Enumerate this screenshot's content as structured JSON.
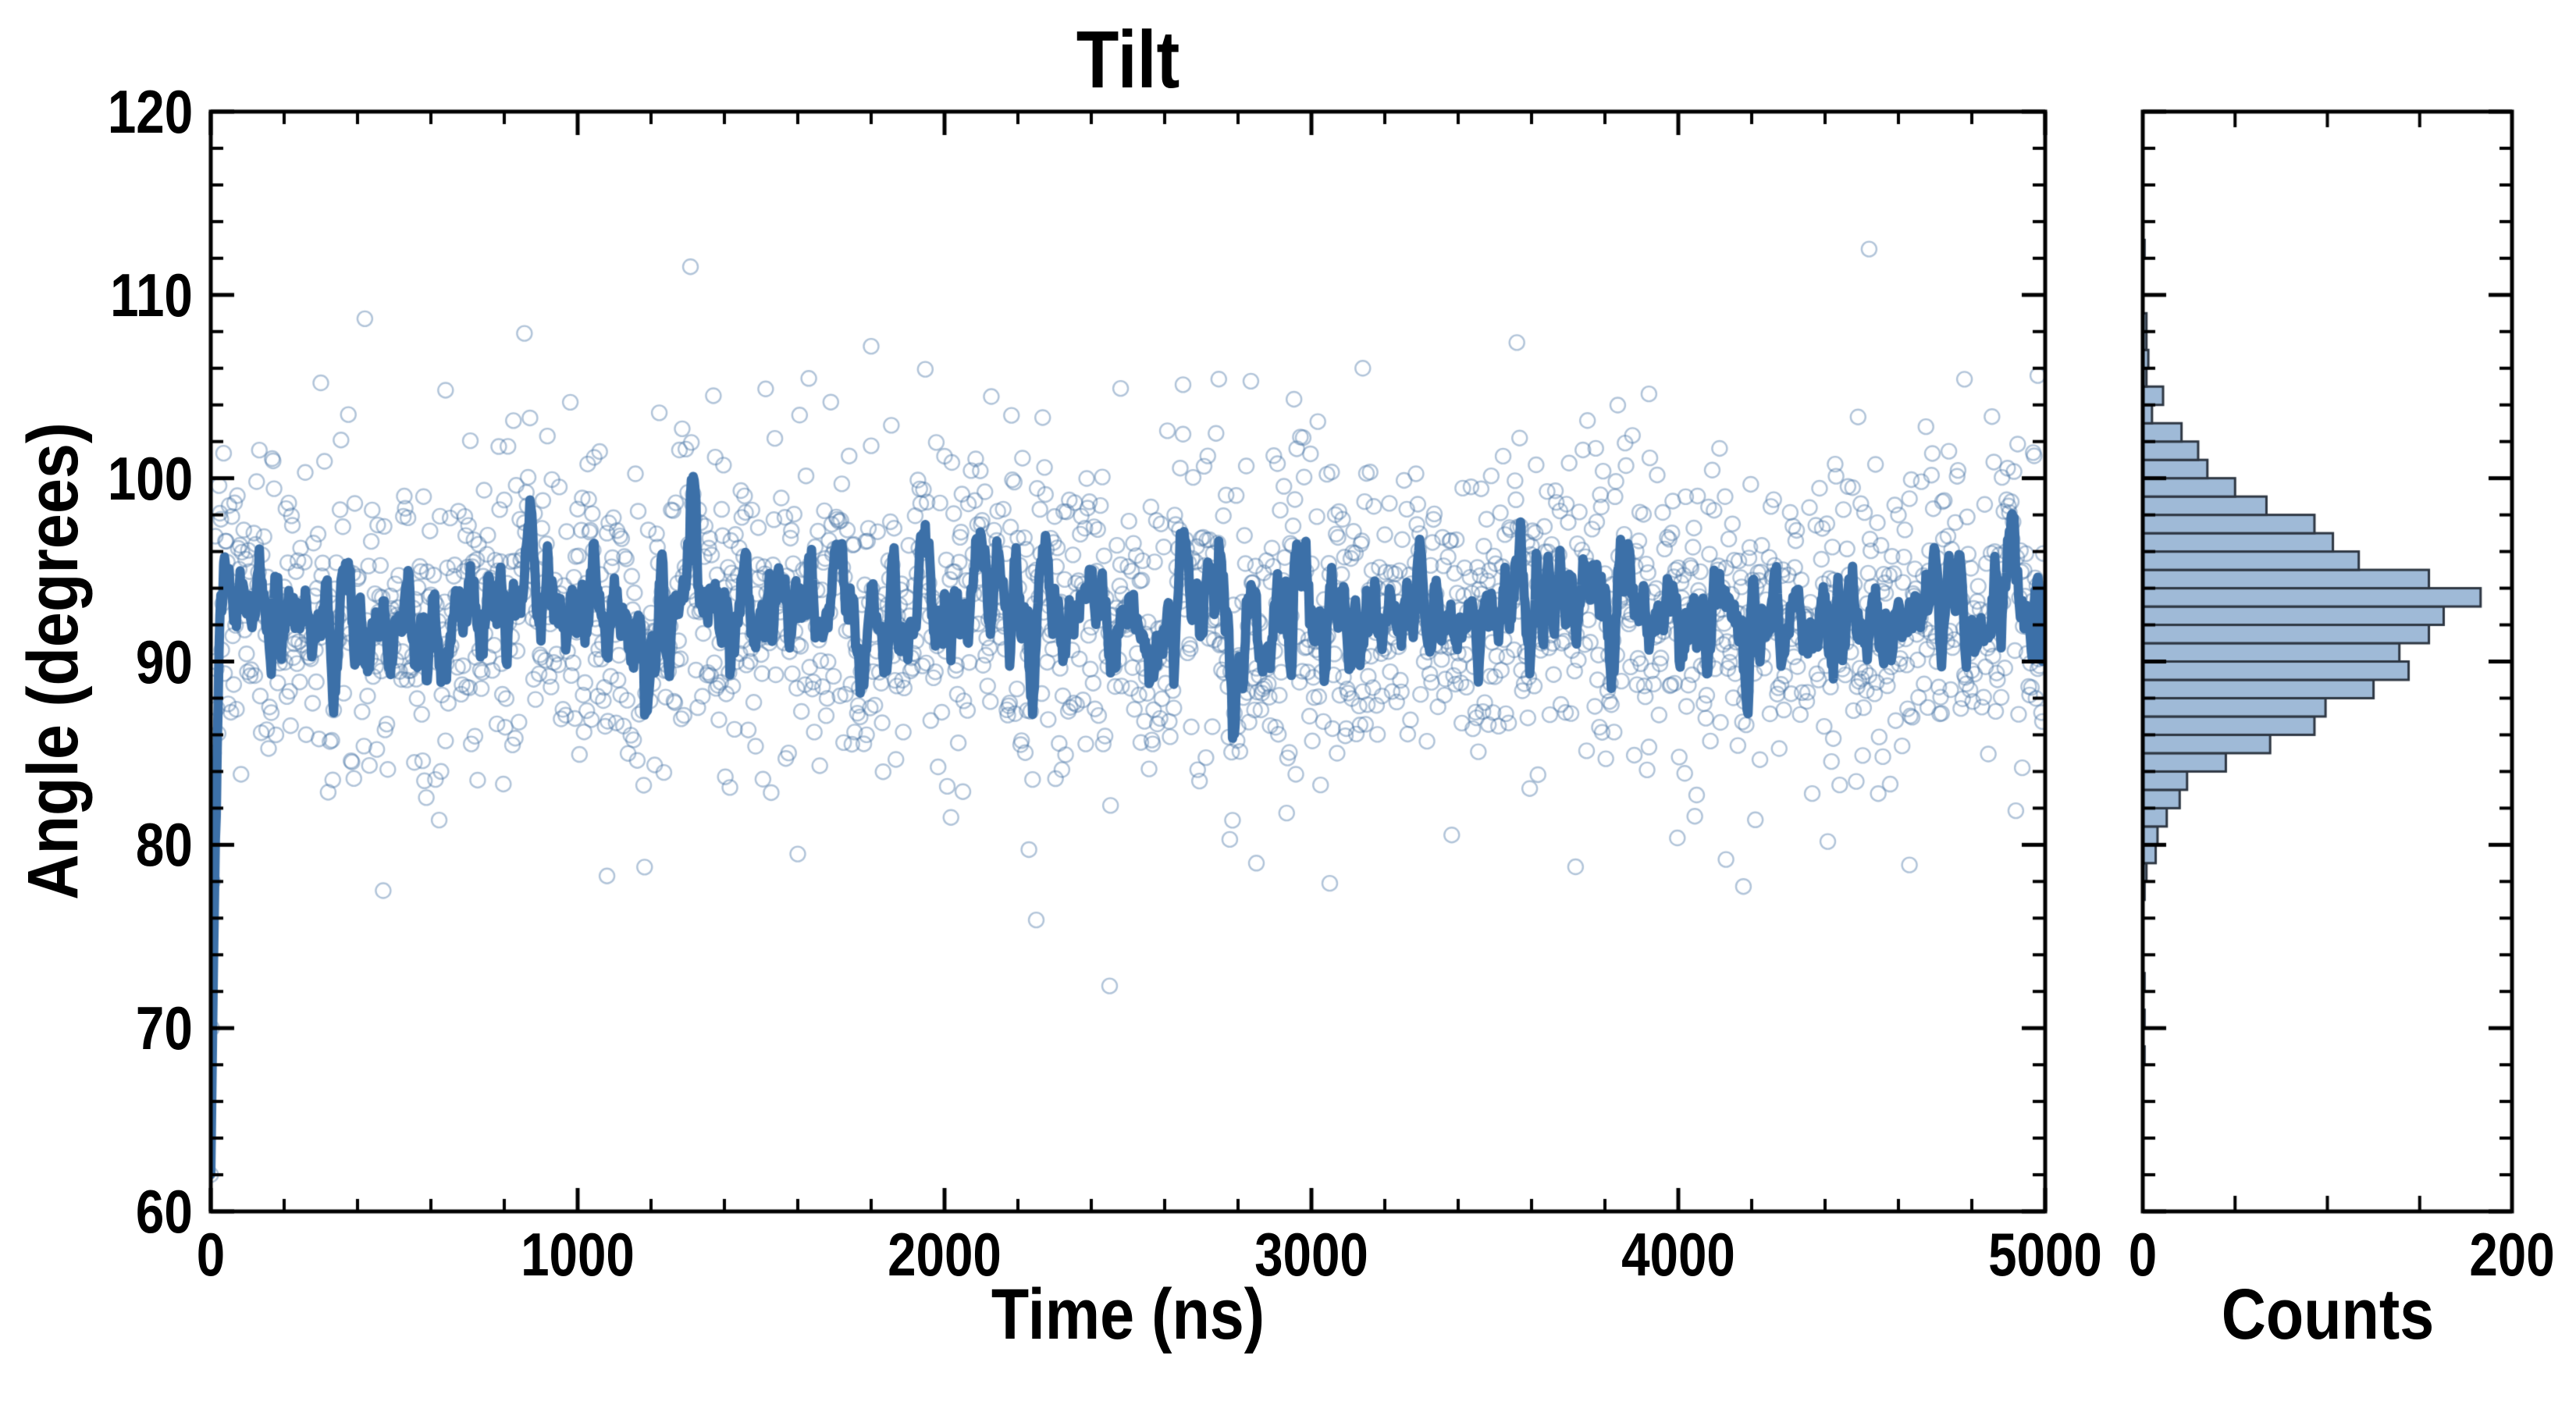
{
  "style": {
    "background": "#ffffff",
    "axis_color": "#000000",
    "line_color": "#3c70a8",
    "marker_color": "rgba(70,114,164,0.42)",
    "hist_fill": "#9fbad7",
    "hist_edge": "#2e3743"
  },
  "chart_data": {
    "type": "scatter",
    "title": "Tilt",
    "xlabel": "Time (ns)",
    "ylabel": "Angle (degrees)",
    "legend": "none",
    "grid": false,
    "main_axes": {
      "xlim": [
        0,
        5000
      ],
      "ylim": [
        60,
        120
      ],
      "xticks": [
        0,
        1000,
        2000,
        3000,
        4000,
        5000
      ],
      "yticks": [
        60,
        70,
        80,
        90,
        100,
        110,
        120
      ],
      "x_minor_step": 200,
      "y_minor_step": 2,
      "tick_direction": "in"
    },
    "scatter": {
      "n": 2000,
      "x_start": 0,
      "x_step": 2.5,
      "mean": 92.8,
      "sd": 4.4,
      "z_clip": 2.9,
      "seed": 7,
      "marker": "open-circle"
    },
    "rolling_mean_line": {
      "window": 7,
      "start_transient": [
        62,
        70,
        78,
        85,
        90
      ],
      "events": [
        [
          1310,
          6.5
        ],
        [
          870,
          3.5
        ],
        [
          1180,
          -4
        ],
        [
          1950,
          3
        ],
        [
          2230,
          -6
        ],
        [
          2450,
          -3
        ],
        [
          2780,
          -6.5
        ],
        [
          2950,
          3.2
        ],
        [
          3560,
          4
        ],
        [
          4180,
          -5
        ],
        [
          640,
          -3.5
        ],
        [
          4760,
          3
        ]
      ]
    },
    "outliers": [
      [
        420,
        108.7
      ],
      [
        855,
        107.9
      ],
      [
        300,
        105.2
      ],
      [
        640,
        104.8
      ],
      [
        1800,
        107.2
      ],
      [
        1370,
        104.5
      ],
      [
        2480,
        104.9
      ],
      [
        2650,
        105.1
      ],
      [
        3140,
        106.0
      ],
      [
        3560,
        107.4
      ],
      [
        3920,
        104.6
      ],
      [
        4520,
        112.5
      ],
      [
        4780,
        105.4
      ],
      [
        4980,
        105.6
      ],
      [
        2450,
        72.3
      ],
      [
        470,
        77.5
      ],
      [
        1080,
        78.3
      ],
      [
        2250,
        75.9
      ],
      [
        3050,
        77.9
      ],
      [
        3720,
        78.8
      ],
      [
        4130,
        79.2
      ],
      [
        4630,
        78.9
      ],
      [
        1600,
        79.5
      ],
      [
        2850,
        79.0
      ]
    ],
    "marginal_hist": {
      "xlabel": "Counts",
      "xlim": [
        0,
        200
      ],
      "xticks": [
        0,
        200
      ],
      "x_minor_ticks": [
        50,
        100,
        150
      ],
      "bin_width": 1,
      "bin_centers": [
        68.5,
        70.5,
        72.5,
        77.5,
        78.5,
        79.5,
        80.5,
        81.5,
        82.5,
        83.5,
        84.5,
        85.5,
        86.5,
        87.5,
        88.5,
        89.5,
        90.5,
        91.5,
        92.5,
        93.5,
        94.5,
        95.5,
        96.5,
        97.5,
        98.5,
        99.5,
        100.5,
        101.5,
        102.5,
        103.5,
        104.5,
        105.5,
        106.5,
        107.5,
        108.5,
        112.5
      ],
      "counts": [
        1,
        1,
        1,
        1,
        2,
        7,
        8,
        13,
        20,
        24,
        45,
        69,
        93,
        99,
        125,
        144,
        139,
        155,
        163,
        183,
        155,
        117,
        103,
        93,
        67,
        50,
        35,
        30,
        21,
        5,
        11,
        2,
        3,
        2,
        2,
        1
      ]
    }
  }
}
